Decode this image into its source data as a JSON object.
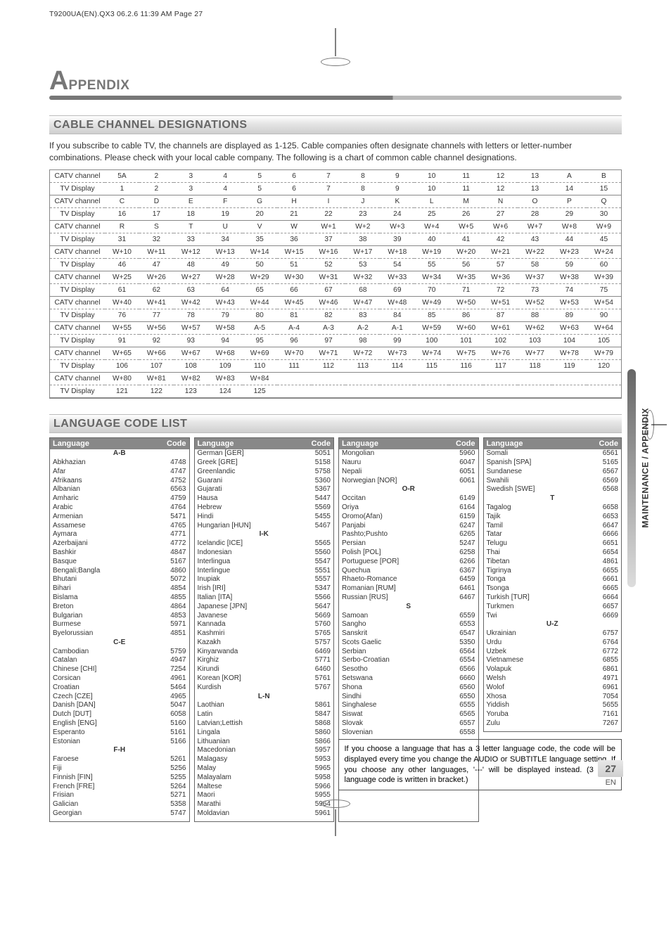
{
  "meta_line": "T9200UA(EN).QX3   06.2.6   11:39 AM   Page 27",
  "title_big": "A",
  "title_rest": "PPENDIX",
  "side_label": "MAINTENANCE / APPENDIX",
  "section1": {
    "title": "CABLE CHANNEL DESIGNATIONS",
    "intro": "If you subscribe to cable TV, the channels are displayed as 1-125. Cable companies often designate channels with letters or letter-number combinations. Please check with your local cable company. The following is a chart of common cable channel designations.",
    "label_catv": "CATV channel",
    "label_tv": "TV Display",
    "groups": [
      {
        "catv": [
          "5A",
          "2",
          "3",
          "4",
          "5",
          "6",
          "7",
          "8",
          "9",
          "10",
          "11",
          "12",
          "13",
          "A",
          "B"
        ],
        "tv": [
          "1",
          "2",
          "3",
          "4",
          "5",
          "6",
          "7",
          "8",
          "9",
          "10",
          "11",
          "12",
          "13",
          "14",
          "15"
        ]
      },
      {
        "catv": [
          "C",
          "D",
          "E",
          "F",
          "G",
          "H",
          "I",
          "J",
          "K",
          "L",
          "M",
          "N",
          "O",
          "P",
          "Q"
        ],
        "tv": [
          "16",
          "17",
          "18",
          "19",
          "20",
          "21",
          "22",
          "23",
          "24",
          "25",
          "26",
          "27",
          "28",
          "29",
          "30"
        ]
      },
      {
        "catv": [
          "R",
          "S",
          "T",
          "U",
          "V",
          "W",
          "W+1",
          "W+2",
          "W+3",
          "W+4",
          "W+5",
          "W+6",
          "W+7",
          "W+8",
          "W+9"
        ],
        "tv": [
          "31",
          "32",
          "33",
          "34",
          "35",
          "36",
          "37",
          "38",
          "39",
          "40",
          "41",
          "42",
          "43",
          "44",
          "45"
        ]
      },
      {
        "catv": [
          "W+10",
          "W+11",
          "W+12",
          "W+13",
          "W+14",
          "W+15",
          "W+16",
          "W+17",
          "W+18",
          "W+19",
          "W+20",
          "W+21",
          "W+22",
          "W+23",
          "W+24"
        ],
        "tv": [
          "46",
          "47",
          "48",
          "49",
          "50",
          "51",
          "52",
          "53",
          "54",
          "55",
          "56",
          "57",
          "58",
          "59",
          "60"
        ]
      },
      {
        "catv": [
          "W+25",
          "W+26",
          "W+27",
          "W+28",
          "W+29",
          "W+30",
          "W+31",
          "W+32",
          "W+33",
          "W+34",
          "W+35",
          "W+36",
          "W+37",
          "W+38",
          "W+39"
        ],
        "tv": [
          "61",
          "62",
          "63",
          "64",
          "65",
          "66",
          "67",
          "68",
          "69",
          "70",
          "71",
          "72",
          "73",
          "74",
          "75"
        ]
      },
      {
        "catv": [
          "W+40",
          "W+41",
          "W+42",
          "W+43",
          "W+44",
          "W+45",
          "W+46",
          "W+47",
          "W+48",
          "W+49",
          "W+50",
          "W+51",
          "W+52",
          "W+53",
          "W+54"
        ],
        "tv": [
          "76",
          "77",
          "78",
          "79",
          "80",
          "81",
          "82",
          "83",
          "84",
          "85",
          "86",
          "87",
          "88",
          "89",
          "90"
        ]
      },
      {
        "catv": [
          "W+55",
          "W+56",
          "W+57",
          "W+58",
          "A-5",
          "A-4",
          "A-3",
          "A-2",
          "A-1",
          "W+59",
          "W+60",
          "W+61",
          "W+62",
          "W+63",
          "W+64"
        ],
        "tv": [
          "91",
          "92",
          "93",
          "94",
          "95",
          "96",
          "97",
          "98",
          "99",
          "100",
          "101",
          "102",
          "103",
          "104",
          "105"
        ]
      },
      {
        "catv": [
          "W+65",
          "W+66",
          "W+67",
          "W+68",
          "W+69",
          "W+70",
          "W+71",
          "W+72",
          "W+73",
          "W+74",
          "W+75",
          "W+76",
          "W+77",
          "W+78",
          "W+79"
        ],
        "tv": [
          "106",
          "107",
          "108",
          "109",
          "110",
          "111",
          "112",
          "113",
          "114",
          "115",
          "116",
          "117",
          "118",
          "119",
          "120"
        ]
      },
      {
        "catv": [
          "W+80",
          "W+81",
          "W+82",
          "W+83",
          "W+84"
        ],
        "tv": [
          "121",
          "122",
          "123",
          "124",
          "125"
        ]
      }
    ]
  },
  "section2": {
    "title": "LANGUAGE CODE LIST",
    "hdr_lang": "Language",
    "hdr_code": "Code",
    "cols": [
      [
        {
          "sub": "A-B"
        },
        {
          "l": "Abkhazian",
          "c": "4748"
        },
        {
          "l": "Afar",
          "c": "4747"
        },
        {
          "l": "Afrikaans",
          "c": "4752"
        },
        {
          "l": "Albanian",
          "c": "6563"
        },
        {
          "l": "Amharic",
          "c": "4759"
        },
        {
          "l": "Arabic",
          "c": "4764"
        },
        {
          "l": "Armenian",
          "c": "5471"
        },
        {
          "l": "Assamese",
          "c": "4765"
        },
        {
          "l": "Aymara",
          "c": "4771"
        },
        {
          "l": "Azerbaijani",
          "c": "4772"
        },
        {
          "l": "Bashkir",
          "c": "4847"
        },
        {
          "l": "Basque",
          "c": "5167"
        },
        {
          "l": "Bengali;Bangla",
          "c": "4860"
        },
        {
          "l": "Bhutani",
          "c": "5072"
        },
        {
          "l": "Bihari",
          "c": "4854"
        },
        {
          "l": "Bislama",
          "c": "4855"
        },
        {
          "l": "Breton",
          "c": "4864"
        },
        {
          "l": "Bulgarian",
          "c": "4853"
        },
        {
          "l": "Burmese",
          "c": "5971"
        },
        {
          "l": "Byelorussian",
          "c": "4851"
        },
        {
          "sub": "C-E"
        },
        {
          "l": "Cambodian",
          "c": "5759"
        },
        {
          "l": "Catalan",
          "c": "4947"
        },
        {
          "l": "Chinese [CHI]",
          "c": "7254"
        },
        {
          "l": "Corsican",
          "c": "4961"
        },
        {
          "l": "Croatian",
          "c": "5464"
        },
        {
          "l": "Czech [CZE]",
          "c": "4965"
        },
        {
          "l": "Danish [DAN]",
          "c": "5047"
        },
        {
          "l": "Dutch [DUT]",
          "c": "6058"
        },
        {
          "l": "English [ENG]",
          "c": "5160"
        },
        {
          "l": "Esperanto",
          "c": "5161"
        },
        {
          "l": "Estonian",
          "c": "5166"
        },
        {
          "sub": "F-H"
        },
        {
          "l": "Faroese",
          "c": "5261"
        },
        {
          "l": "Fiji",
          "c": "5256"
        },
        {
          "l": "Finnish [FIN]",
          "c": "5255"
        },
        {
          "l": "French [FRE]",
          "c": "5264"
        },
        {
          "l": "Frisian",
          "c": "5271"
        },
        {
          "l": "Galician",
          "c": "5358"
        },
        {
          "l": "Georgian",
          "c": "5747"
        }
      ],
      [
        {
          "l": "German [GER]",
          "c": "5051"
        },
        {
          "l": "Greek [GRE]",
          "c": "5158"
        },
        {
          "l": "Greenlandic",
          "c": "5758"
        },
        {
          "l": "Guarani",
          "c": "5360"
        },
        {
          "l": "Gujarati",
          "c": "5367"
        },
        {
          "l": "Hausa",
          "c": "5447"
        },
        {
          "l": "Hebrew",
          "c": "5569"
        },
        {
          "l": "Hindi",
          "c": "5455"
        },
        {
          "l": "Hungarian [HUN]",
          "c": "5467"
        },
        {
          "sub": "I-K"
        },
        {
          "l": "Icelandic [ICE]",
          "c": "5565"
        },
        {
          "l": "Indonesian",
          "c": "5560"
        },
        {
          "l": "Interlingua",
          "c": "5547"
        },
        {
          "l": "Interlingue",
          "c": "5551"
        },
        {
          "l": "Inupiak",
          "c": "5557"
        },
        {
          "l": "Irish [IRI]",
          "c": "5347"
        },
        {
          "l": "Italian [ITA]",
          "c": "5566"
        },
        {
          "l": "Japanese [JPN]",
          "c": "5647"
        },
        {
          "l": "Javanese",
          "c": "5669"
        },
        {
          "l": "Kannada",
          "c": "5760"
        },
        {
          "l": "Kashmiri",
          "c": "5765"
        },
        {
          "l": "Kazakh",
          "c": "5757"
        },
        {
          "l": "Kinyarwanda",
          "c": "6469"
        },
        {
          "l": "Kirghiz",
          "c": "5771"
        },
        {
          "l": "Kirundi",
          "c": "6460"
        },
        {
          "l": "Korean [KOR]",
          "c": "5761"
        },
        {
          "l": "Kurdish",
          "c": "5767"
        },
        {
          "sub": "L-N"
        },
        {
          "l": "Laothian",
          "c": "5861"
        },
        {
          "l": "Latin",
          "c": "5847"
        },
        {
          "l": "Latvian;Lettish",
          "c": "5868"
        },
        {
          "l": "Lingala",
          "c": "5860"
        },
        {
          "l": "Lithuanian",
          "c": "5866"
        },
        {
          "l": "Macedonian",
          "c": "5957"
        },
        {
          "l": "Malagasy",
          "c": "5953"
        },
        {
          "l": "Malay",
          "c": "5965"
        },
        {
          "l": "Malayalam",
          "c": "5958"
        },
        {
          "l": "Maltese",
          "c": "5966"
        },
        {
          "l": "Maori",
          "c": "5955"
        },
        {
          "l": "Marathi",
          "c": "5964"
        },
        {
          "l": "Moldavian",
          "c": "5961"
        }
      ],
      [
        {
          "l": "Mongolian",
          "c": "5960"
        },
        {
          "l": "Nauru",
          "c": "6047"
        },
        {
          "l": "Nepali",
          "c": "6051"
        },
        {
          "l": "Norwegian [NOR]",
          "c": "6061"
        },
        {
          "sub": "O-R"
        },
        {
          "l": "Occitan",
          "c": "6149"
        },
        {
          "l": "Oriya",
          "c": "6164"
        },
        {
          "l": "Oromo(Afan)",
          "c": "6159"
        },
        {
          "l": "Panjabi",
          "c": "6247"
        },
        {
          "l": "Pashto;Pushto",
          "c": "6265"
        },
        {
          "l": "Persian",
          "c": "5247"
        },
        {
          "l": "Polish [POL]",
          "c": "6258"
        },
        {
          "l": "Portuguese [POR]",
          "c": "6266"
        },
        {
          "l": "Quechua",
          "c": "6367"
        },
        {
          "l": "Rhaeto-Romance",
          "c": "6459"
        },
        {
          "l": "Romanian [RUM]",
          "c": "6461"
        },
        {
          "l": "Russian [RUS]",
          "c": "6467"
        },
        {
          "sub": "S"
        },
        {
          "l": "Samoan",
          "c": "6559"
        },
        {
          "l": "Sangho",
          "c": "6553"
        },
        {
          "l": "Sanskrit",
          "c": "6547"
        },
        {
          "l": "Scots Gaelic",
          "c": "5350"
        },
        {
          "l": "Serbian",
          "c": "6564"
        },
        {
          "l": "Serbo-Croatian",
          "c": "6554"
        },
        {
          "l": "Sesotho",
          "c": "6566"
        },
        {
          "l": "Setswana",
          "c": "6660"
        },
        {
          "l": "Shona",
          "c": "6560"
        },
        {
          "l": "Sindhi",
          "c": "6550"
        },
        {
          "l": "Singhalese",
          "c": "6555"
        },
        {
          "l": "Siswat",
          "c": "6565"
        },
        {
          "l": "Slovak",
          "c": "6557"
        },
        {
          "l": "Slovenian",
          "c": "6558"
        }
      ],
      [
        {
          "l": "Somali",
          "c": "6561"
        },
        {
          "l": "Spanish [SPA]",
          "c": "5165"
        },
        {
          "l": "Sundanese",
          "c": "6567"
        },
        {
          "l": "Swahili",
          "c": "6569"
        },
        {
          "l": "Swedish [SWE]",
          "c": "6568"
        },
        {
          "sub": "T"
        },
        {
          "l": "Tagalog",
          "c": "6658"
        },
        {
          "l": "Tajik",
          "c": "6653"
        },
        {
          "l": "Tamil",
          "c": "6647"
        },
        {
          "l": "Tatar",
          "c": "6666"
        },
        {
          "l": "Telugu",
          "c": "6651"
        },
        {
          "l": "Thai",
          "c": "6654"
        },
        {
          "l": "Tibetan",
          "c": "4861"
        },
        {
          "l": "Tigrinya",
          "c": "6655"
        },
        {
          "l": "Tonga",
          "c": "6661"
        },
        {
          "l": "Tsonga",
          "c": "6665"
        },
        {
          "l": "Turkish [TUR]",
          "c": "6664"
        },
        {
          "l": "Turkmen",
          "c": "6657"
        },
        {
          "l": "Twi",
          "c": "6669"
        },
        {
          "sub": "U-Z"
        },
        {
          "l": "Ukrainian",
          "c": "6757"
        },
        {
          "l": "Urdu",
          "c": "6764"
        },
        {
          "l": "Uzbek",
          "c": "6772"
        },
        {
          "l": "Vietnamese",
          "c": "6855"
        },
        {
          "l": "Volapuk",
          "c": "6861"
        },
        {
          "l": "Welsh",
          "c": "4971"
        },
        {
          "l": "Wolof",
          "c": "6961"
        },
        {
          "l": "Xhosa",
          "c": "7054"
        },
        {
          "l": "Yiddish",
          "c": "5655"
        },
        {
          "l": "Yoruba",
          "c": "7161"
        },
        {
          "l": "Zulu",
          "c": "7267"
        }
      ]
    ],
    "note": "If you choose a language that has a 3 letter language code, the code will be displayed every time you change the AUDIO or SUBTITLE language setting. If you choose any other languages, '---' will be displayed instead. (3 letter language code is written in bracket.)"
  },
  "page_number": "27",
  "page_en": "EN"
}
